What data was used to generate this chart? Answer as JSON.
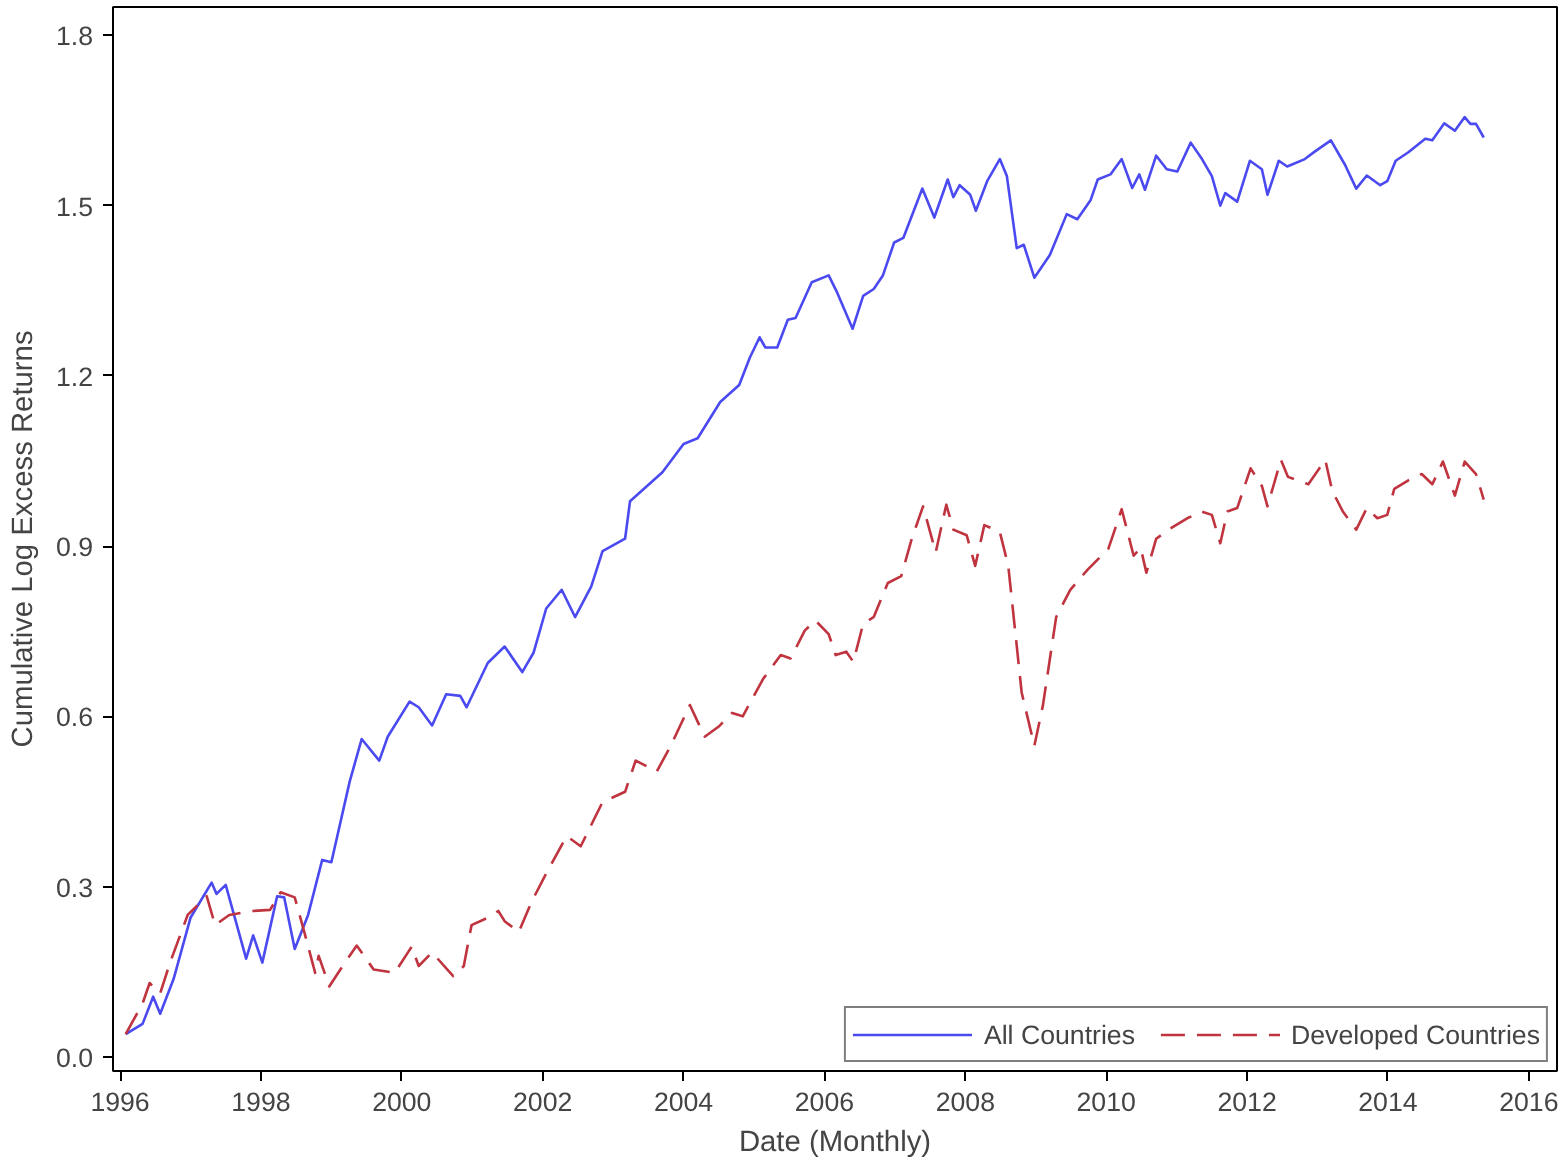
{
  "chart_data": {
    "type": "line",
    "xlabel": "Date (Monthly)",
    "ylabel": "Cumulative Log Excess Returns",
    "xlim": [
      1995.9,
      2016.4
    ],
    "ylim": [
      -0.025,
      1.85
    ],
    "xticks": [
      1996,
      1998,
      2000,
      2002,
      2004,
      2006,
      2008,
      2010,
      2012,
      2014,
      2016
    ],
    "yticks": [
      {
        "value": 0,
        "label": "0.0"
      },
      0.3,
      0.6,
      0.9,
      1.2,
      1.5,
      1.8
    ],
    "grid": false,
    "legend": "bottom right",
    "marker": "none",
    "series": [
      {
        "name": "All Countries",
        "color": "#4a4af0",
        "line_style": "solid",
        "x": [
          1996.08,
          1996.32,
          1996.47,
          1996.57,
          1996.76,
          1997.0,
          1997.3,
          1997.37,
          1997.5,
          1997.79,
          1997.89,
          1998.02,
          1998.23,
          1998.33,
          1998.48,
          1998.67,
          1998.87,
          1999.0,
          1999.26,
          1999.43,
          1999.68,
          1999.8,
          2000.11,
          2000.24,
          2000.43,
          2000.63,
          2000.83,
          2000.92,
          2001.22,
          2001.46,
          2001.71,
          2001.87,
          2002.05,
          2002.27,
          2002.46,
          2002.69,
          2002.85,
          2003.17,
          2003.24,
          2003.7,
          2004.0,
          2004.2,
          2004.52,
          2004.79,
          2004.94,
          2005.08,
          2005.16,
          2005.33,
          2005.48,
          2005.59,
          2005.82,
          2006.06,
          2006.18,
          2006.4,
          2006.55,
          2006.7,
          2006.83,
          2006.99,
          2007.12,
          2007.39,
          2007.56,
          2007.75,
          2007.83,
          2007.92,
          2008.07,
          2008.15,
          2008.31,
          2008.49,
          2008.59,
          2008.73,
          2008.83,
          2008.98,
          2009.2,
          2009.44,
          2009.59,
          2009.78,
          2009.88,
          2010.06,
          2010.22,
          2010.37,
          2010.47,
          2010.55,
          2010.71,
          2010.86,
          2011.01,
          2011.2,
          2011.35,
          2011.5,
          2011.62,
          2011.69,
          2011.86,
          2012.04,
          2012.21,
          2012.29,
          2012.45,
          2012.57,
          2012.82,
          2012.97,
          2013.19,
          2013.39,
          2013.55,
          2013.7,
          2013.89,
          2013.99,
          2014.11,
          2014.29,
          2014.53,
          2014.63,
          2014.8,
          2014.95,
          2015.09,
          2015.17,
          2015.25,
          2015.36
        ],
        "values": [
          0.04,
          0.058,
          0.106,
          0.076,
          0.137,
          0.245,
          0.307,
          0.287,
          0.303,
          0.173,
          0.214,
          0.166,
          0.283,
          0.281,
          0.19,
          0.25,
          0.347,
          0.343,
          0.485,
          0.56,
          0.522,
          0.564,
          0.626,
          0.616,
          0.584,
          0.639,
          0.636,
          0.616,
          0.694,
          0.723,
          0.678,
          0.712,
          0.79,
          0.823,
          0.775,
          0.829,
          0.891,
          0.913,
          0.979,
          1.03,
          1.08,
          1.09,
          1.154,
          1.184,
          1.232,
          1.268,
          1.25,
          1.25,
          1.299,
          1.302,
          1.365,
          1.377,
          1.347,
          1.283,
          1.341,
          1.353,
          1.377,
          1.435,
          1.443,
          1.53,
          1.479,
          1.546,
          1.515,
          1.536,
          1.519,
          1.491,
          1.543,
          1.582,
          1.552,
          1.425,
          1.431,
          1.373,
          1.413,
          1.485,
          1.476,
          1.51,
          1.546,
          1.555,
          1.582,
          1.531,
          1.555,
          1.528,
          1.588,
          1.564,
          1.56,
          1.611,
          1.584,
          1.552,
          1.5,
          1.522,
          1.507,
          1.579,
          1.564,
          1.519,
          1.579,
          1.569,
          1.582,
          1.596,
          1.615,
          1.572,
          1.53,
          1.553,
          1.536,
          1.543,
          1.579,
          1.594,
          1.618,
          1.615,
          1.645,
          1.632,
          1.656,
          1.644,
          1.644,
          1.62
        ]
      },
      {
        "name": "Developed Countries",
        "color": "#c0343f",
        "line_style": "dashed",
        "x": [
          1996.08,
          1996.32,
          1996.42,
          1996.57,
          1996.71,
          1996.96,
          1997.23,
          1997.35,
          1997.55,
          1997.89,
          1998.13,
          1998.28,
          1998.48,
          1998.62,
          1998.77,
          1998.82,
          1998.97,
          1999.16,
          1999.36,
          1999.6,
          1999.9,
          2000.14,
          2000.24,
          2000.43,
          2000.73,
          2000.88,
          2000.99,
          2001.22,
          2001.37,
          2001.46,
          2001.66,
          2001.85,
          2002.05,
          2002.34,
          2002.54,
          2002.85,
          2003.17,
          2003.32,
          2003.62,
          2003.81,
          2004.09,
          2004.3,
          2004.5,
          2004.69,
          2004.84,
          2005.13,
          2005.38,
          2005.52,
          2005.72,
          2005.87,
          2006.06,
          2006.16,
          2006.31,
          2006.41,
          2006.55,
          2006.7,
          2006.9,
          2007.09,
          2007.24,
          2007.4,
          2007.58,
          2007.73,
          2007.83,
          2008.02,
          2008.14,
          2008.27,
          2008.49,
          2008.61,
          2008.8,
          2008.98,
          2009.1,
          2009.29,
          2009.49,
          2009.74,
          2010.03,
          2010.22,
          2010.39,
          2010.49,
          2010.57,
          2010.71,
          2010.91,
          2011.15,
          2011.35,
          2011.5,
          2011.62,
          2011.72,
          2011.86,
          2012.05,
          2012.21,
          2012.29,
          2012.48,
          2012.58,
          2012.87,
          2013.11,
          2013.21,
          2013.36,
          2013.55,
          2013.7,
          2013.85,
          2013.99,
          2014.09,
          2014.29,
          2014.48,
          2014.63,
          2014.78,
          2014.95,
          2015.09,
          2015.25,
          2015.36
        ],
        "values": [
          0.04,
          0.094,
          0.13,
          0.112,
          0.166,
          0.25,
          0.283,
          0.232,
          0.25,
          0.257,
          0.259,
          0.29,
          0.281,
          0.218,
          0.148,
          0.178,
          0.124,
          0.16,
          0.196,
          0.154,
          0.148,
          0.194,
          0.16,
          0.184,
          0.142,
          0.16,
          0.232,
          0.245,
          0.257,
          0.239,
          0.22,
          0.275,
          0.323,
          0.389,
          0.371,
          0.449,
          0.467,
          0.522,
          0.503,
          0.546,
          0.62,
          0.564,
          0.582,
          0.606,
          0.6,
          0.666,
          0.708,
          0.702,
          0.751,
          0.769,
          0.745,
          0.708,
          0.714,
          0.696,
          0.763,
          0.775,
          0.835,
          0.847,
          0.913,
          0.97,
          0.889,
          0.973,
          0.929,
          0.919,
          0.865,
          0.937,
          0.925,
          0.865,
          0.642,
          0.548,
          0.618,
          0.775,
          0.823,
          0.859,
          0.895,
          0.965,
          0.883,
          0.897,
          0.853,
          0.913,
          0.931,
          0.949,
          0.961,
          0.955,
          0.905,
          0.961,
          0.967,
          1.037,
          1.006,
          0.97,
          1.052,
          1.022,
          1.009,
          1.052,
          0.997,
          0.961,
          0.929,
          0.967,
          0.949,
          0.955,
          1.001,
          1.016,
          1.027,
          1.009,
          1.049,
          0.989,
          1.049,
          1.027,
          0.982
        ]
      }
    ]
  }
}
